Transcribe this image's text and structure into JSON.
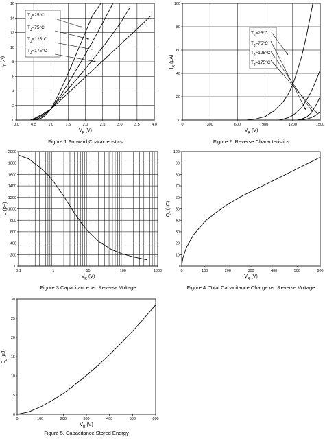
{
  "chart_data": [
    {
      "type": "line",
      "caption": "Figure 1.Forward Characteristics",
      "xlabel": "V",
      "xlabel_sub": "F",
      "xlabel_unit": " (V)",
      "ylabel": "I",
      "ylabel_sub": "F",
      "ylabel_unit": " (A)",
      "xlim": [
        0,
        4
      ],
      "ylim": [
        0,
        16
      ],
      "xticks": [
        "0.0",
        "0.5",
        "1.0",
        "1.5",
        "2.0",
        "2.5",
        "3.0",
        "3.5",
        "4.0"
      ],
      "yticks": [
        "0",
        "2",
        "4",
        "6",
        "8",
        "10",
        "12",
        "14",
        "16"
      ],
      "grid": true,
      "legend_position": "top-left",
      "series": [
        {
          "name": "T",
          "name_sub": "J",
          "name_rest": "=25°C",
          "x": [
            0.55,
            0.7,
            0.85,
            1.0,
            1.2,
            1.4,
            1.6,
            1.8,
            2.0,
            2.2,
            2.45
          ],
          "y": [
            0,
            0.2,
            0.7,
            1.5,
            3.3,
            5.3,
            7.5,
            9.8,
            12.0,
            14.3,
            16.0
          ]
        },
        {
          "name": "T",
          "name_sub": "J",
          "name_rest": "=75°C",
          "x": [
            0.5,
            0.65,
            0.8,
            1.0,
            1.3,
            1.6,
            1.9,
            2.2,
            2.5,
            2.8
          ],
          "y": [
            0,
            0.25,
            0.7,
            1.5,
            3.5,
            5.8,
            8.2,
            10.7,
            13.3,
            16.0
          ]
        },
        {
          "name": "T",
          "name_sub": "J",
          "name_rest": "=125°C",
          "x": [
            0.45,
            0.6,
            0.8,
            1.0,
            1.4,
            1.8,
            2.2,
            2.6,
            3.0,
            3.3
          ],
          "y": [
            0,
            0.3,
            0.8,
            1.5,
            3.7,
            5.9,
            8.2,
            10.6,
            13.2,
            15.5
          ]
        },
        {
          "name": "T",
          "name_sub": "J",
          "name_rest": "=175°C",
          "x": [
            0.4,
            0.55,
            0.75,
            1.0,
            1.5,
            2.0,
            2.5,
            3.0,
            3.5,
            3.9
          ],
          "y": [
            0,
            0.3,
            0.8,
            1.5,
            3.7,
            5.9,
            8.1,
            10.3,
            12.5,
            14.3
          ]
        }
      ]
    },
    {
      "type": "line",
      "caption": "Figure 2. Reverse Characteristics",
      "xlabel": "V",
      "xlabel_sub": "R",
      "xlabel_unit": " (V)",
      "ylabel": "I",
      "ylabel_sub": "R",
      "ylabel_unit": " (μA)",
      "xlim": [
        0,
        1500
      ],
      "ylim": [
        0,
        100
      ],
      "xticks": [
        "0",
        "300",
        "600",
        "900",
        "1200",
        "1500"
      ],
      "yticks": [
        "0",
        "20",
        "40",
        "60",
        "80",
        "100"
      ],
      "grid": true,
      "legend_position": "top-right",
      "series": [
        {
          "name": "T",
          "name_sub": "J",
          "name_rest": "=25°C",
          "x": [
            1250,
            1300,
            1350,
            1400,
            1450,
            1500
          ],
          "y": [
            0,
            0.3,
            0.9,
            2,
            4,
            7
          ]
        },
        {
          "name": "T",
          "name_sub": "J",
          "name_rest": "=75°C",
          "x": [
            1250,
            1300,
            1350,
            1400,
            1450,
            1500
          ],
          "y": [
            0,
            1,
            2.5,
            6,
            12,
            20
          ]
        },
        {
          "name": "T",
          "name_sub": "J",
          "name_rest": "=125°C",
          "x": [
            1050,
            1100,
            1150,
            1200,
            1250,
            1300,
            1350,
            1400,
            1450,
            1500
          ],
          "y": [
            0,
            0.8,
            2,
            4,
            7,
            11,
            17,
            24,
            33,
            43
          ]
        },
        {
          "name": "T",
          "name_sub": "J",
          "name_rest": "=175°C",
          "x": [
            700,
            800,
            900,
            1000,
            1100,
            1150,
            1200,
            1250,
            1300,
            1350,
            1400,
            1420
          ],
          "y": [
            0,
            1,
            3,
            8,
            16,
            22,
            30,
            42,
            55,
            72,
            92,
            100
          ]
        }
      ]
    },
    {
      "type": "line",
      "caption": "Figure 3.Capacitance vs. Reverse Voltage",
      "xlabel": "V",
      "xlabel_sub": "R",
      "xlabel_unit": " (V)",
      "ylabel": "C (pF)",
      "xscale": "log",
      "xlim": [
        0.1,
        1000
      ],
      "ylim": [
        0,
        2000
      ],
      "xticks": [
        "0.1",
        "1",
        "10",
        "100",
        "1000"
      ],
      "yticks": [
        "0",
        "200",
        "400",
        "600",
        "800",
        "1000",
        "1200",
        "1400",
        "1600",
        "1800",
        "2000"
      ],
      "grid": true,
      "series": [
        {
          "x": [
            0.1,
            0.2,
            0.4,
            0.7,
            1,
            2,
            4,
            7,
            10,
            20,
            50,
            100,
            200,
            500
          ],
          "y": [
            1940,
            1870,
            1730,
            1590,
            1480,
            1220,
            930,
            720,
            610,
            430,
            280,
            210,
            160,
            110
          ]
        }
      ]
    },
    {
      "type": "line",
      "caption": "Figure 4. Total Capacitance Charge vs. Reverse Voltage",
      "xlabel": "V",
      "xlabel_sub": "R",
      "xlabel_unit": " (V)",
      "ylabel": "Q",
      "ylabel_sub": "c",
      "ylabel_unit": " (nC)",
      "xlim": [
        0,
        600
      ],
      "ylim": [
        0,
        100
      ],
      "xticks": [
        "0",
        "100",
        "200",
        "300",
        "400",
        "500",
        "600"
      ],
      "yticks": [
        "0",
        "10",
        "20",
        "30",
        "40",
        "50",
        "60",
        "70",
        "80",
        "90",
        "100"
      ],
      "grid": false,
      "series": [
        {
          "x": [
            0,
            5,
            20,
            50,
            100,
            150,
            200,
            250,
            300,
            350,
            400,
            450,
            500,
            550,
            600
          ],
          "y": [
            0,
            7,
            16,
            27,
            39,
            47,
            54,
            60,
            65,
            70,
            75,
            80,
            85,
            90,
            95
          ]
        }
      ]
    },
    {
      "type": "line",
      "caption": "Figure 5. Capacitance Stored Energy",
      "xlabel": "V",
      "xlabel_sub": "R",
      "xlabel_unit": " (V)",
      "ylabel": "E",
      "ylabel_sub": "c",
      "ylabel_unit": " (μJ)",
      "xlim": [
        0,
        600
      ],
      "ylim": [
        0,
        30
      ],
      "xticks": [
        "0",
        "100",
        "200",
        "300",
        "400",
        "500",
        "600"
      ],
      "yticks": [
        "0",
        "5",
        "10",
        "15",
        "20",
        "25",
        "30"
      ],
      "grid": false,
      "series": [
        {
          "x": [
            0,
            50,
            100,
            150,
            200,
            250,
            300,
            350,
            400,
            450,
            500,
            550,
            600
          ],
          "y": [
            0,
            0.6,
            1.9,
            3.5,
            5.4,
            7.7,
            10.1,
            12.7,
            15.5,
            18.5,
            21.6,
            25.0,
            28.5
          ]
        }
      ]
    }
  ]
}
